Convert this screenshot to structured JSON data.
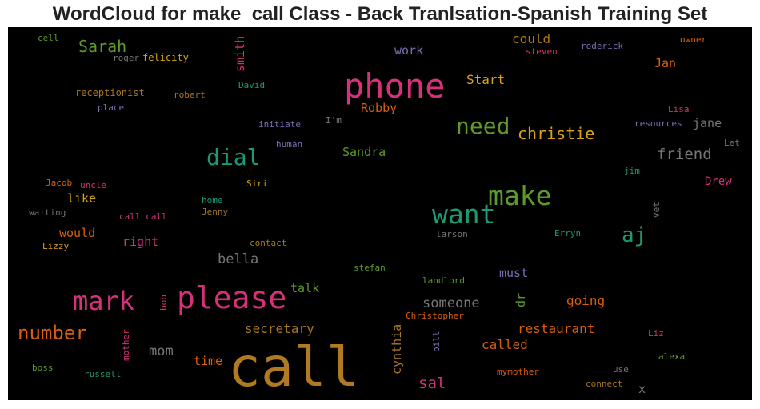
{
  "title": "WordCloud for make_call Class - Back Tranlsation-Spanish Training Set",
  "colors": {
    "background": "#000000"
  },
  "words": [
    {
      "text": "call",
      "color": "#b07a23"
    },
    {
      "text": "phone",
      "color": "#d6317a"
    },
    {
      "text": "please",
      "color": "#d6317a"
    },
    {
      "text": "make",
      "color": "#5e9a2a"
    },
    {
      "text": "want",
      "color": "#1b9a77"
    },
    {
      "text": "mark",
      "color": "#d6317a"
    },
    {
      "text": "need",
      "color": "#5e9a2a"
    },
    {
      "text": "dial",
      "color": "#1b9a77"
    },
    {
      "text": "number",
      "color": "#d95f0e"
    },
    {
      "text": "christie",
      "color": "#d9a21a"
    },
    {
      "text": "aj",
      "color": "#1b9a77"
    },
    {
      "text": "Sarah",
      "color": "#5e9a2a"
    },
    {
      "text": "friend",
      "color": "#767676"
    },
    {
      "text": "sal",
      "color": "#d6317a"
    },
    {
      "text": "someone",
      "color": "#767676"
    },
    {
      "text": "restaurant",
      "color": "#d95f0e"
    },
    {
      "text": "bella",
      "color": "#767676"
    },
    {
      "text": "mom",
      "color": "#767676"
    },
    {
      "text": "secretary",
      "color": "#a9761f"
    },
    {
      "text": "called",
      "color": "#d95f0e"
    },
    {
      "text": "going",
      "color": "#d95f0e"
    },
    {
      "text": "Start",
      "color": "#d9a21a"
    },
    {
      "text": "could",
      "color": "#a9761f"
    },
    {
      "text": "Robby",
      "color": "#d95f0e"
    },
    {
      "text": "Sandra",
      "color": "#5e9a2a"
    },
    {
      "text": "time",
      "color": "#d95f0e"
    },
    {
      "text": "talk",
      "color": "#5e9a2a"
    },
    {
      "text": "must",
      "color": "#7570b3"
    },
    {
      "text": "would",
      "color": "#d95f0e"
    },
    {
      "text": "right",
      "color": "#d6317a"
    },
    {
      "text": "like",
      "color": "#d9a21a"
    },
    {
      "text": "work",
      "color": "#7570b3"
    },
    {
      "text": "jane",
      "color": "#767676"
    },
    {
      "text": "Jan",
      "color": "#d95f0e"
    },
    {
      "text": "Drew",
      "color": "#d6317a"
    },
    {
      "text": "x",
      "color": "#767676"
    },
    {
      "text": "smith",
      "color": "#d6317a",
      "vertical": true
    },
    {
      "text": "cynthia",
      "color": "#a9761f",
      "vertical": true
    },
    {
      "text": "dr",
      "color": "#5e9a2a",
      "vertical": true
    },
    {
      "text": "cell",
      "color": "#5e9a2a"
    },
    {
      "text": "roger",
      "color": "#767676"
    },
    {
      "text": "felicity",
      "color": "#d9a21a"
    },
    {
      "text": "receptionist",
      "color": "#a9761f"
    },
    {
      "text": "place",
      "color": "#7570b3"
    },
    {
      "text": "robert",
      "color": "#a9761f"
    },
    {
      "text": "David",
      "color": "#1b9a77"
    },
    {
      "text": "initiate",
      "color": "#7570b3"
    },
    {
      "text": "I'm",
      "color": "#767676"
    },
    {
      "text": "human",
      "color": "#7570b3"
    },
    {
      "text": "Siri",
      "color": "#d9a21a"
    },
    {
      "text": "home",
      "color": "#1b9a77"
    },
    {
      "text": "Jenny",
      "color": "#a9761f"
    },
    {
      "text": "Jacob",
      "color": "#d95f0e"
    },
    {
      "text": "uncle",
      "color": "#d6317a"
    },
    {
      "text": "waiting",
      "color": "#767676"
    },
    {
      "text": "call call",
      "color": "#d6317a"
    },
    {
      "text": "Lizzy",
      "color": "#d9a21a"
    },
    {
      "text": "contact",
      "color": "#a9761f"
    },
    {
      "text": "larson",
      "color": "#767676"
    },
    {
      "text": "Erryn",
      "color": "#1b9a77"
    },
    {
      "text": "stefan",
      "color": "#5e9a2a"
    },
    {
      "text": "landlord",
      "color": "#5e9a2a"
    },
    {
      "text": "Christopher",
      "color": "#d95f0e"
    },
    {
      "text": "Lisa",
      "color": "#d6317a"
    },
    {
      "text": "resources",
      "color": "#7570b3"
    },
    {
      "text": "Let",
      "color": "#767676"
    },
    {
      "text": "jim",
      "color": "#1b9a77"
    },
    {
      "text": "steven",
      "color": "#d6317a"
    },
    {
      "text": "roderick",
      "color": "#7570b3"
    },
    {
      "text": "owner",
      "color": "#d95f0e"
    },
    {
      "text": "Liz",
      "color": "#d6317a"
    },
    {
      "text": "alexa",
      "color": "#5e9a2a"
    },
    {
      "text": "use",
      "color": "#767676"
    },
    {
      "text": "connect",
      "color": "#a9761f"
    },
    {
      "text": "mymother",
      "color": "#d95f0e"
    },
    {
      "text": "boss",
      "color": "#5e9a2a"
    },
    {
      "text": "russell",
      "color": "#1b9a77"
    },
    {
      "text": "mother",
      "color": "#d6317a",
      "vertical": true
    },
    {
      "text": "bob",
      "color": "#d6317a",
      "vertical": true
    },
    {
      "text": "bill",
      "color": "#7570b3",
      "vertical": true
    },
    {
      "text": "vet",
      "color": "#767676",
      "vertical": true
    }
  ]
}
